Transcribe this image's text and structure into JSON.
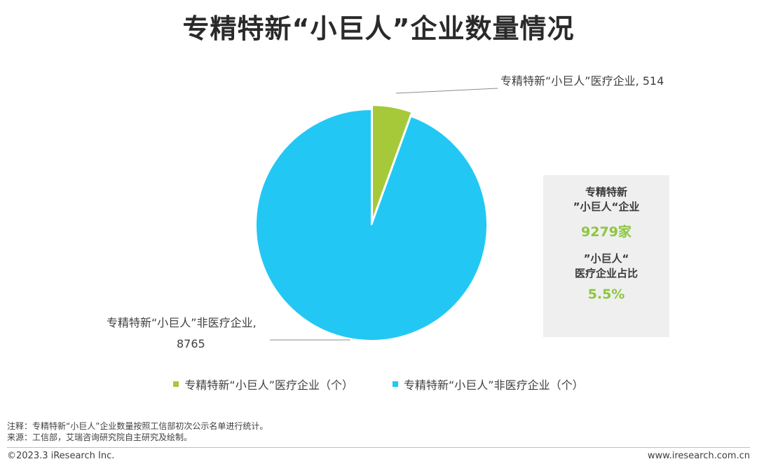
{
  "title": "专精特新“小巨人”企业数量情况",
  "chart_data": {
    "type": "pie",
    "categories": [
      "专精特新“小巨人”医疗企业",
      "专精特新“小巨人”非医疗企业"
    ],
    "values": [
      514,
      8765
    ],
    "colors": [
      "#a6c93a",
      "#22c8f3"
    ],
    "unit": "个"
  },
  "callouts": {
    "medical": "专精特新“小巨人”医疗企业, 514",
    "non_medical_line1": "专精特新“小巨人”非医疗企业,",
    "non_medical_line2": "8765"
  },
  "info_box": {
    "total_label_line1": "专精特新",
    "total_label_line2": "”小巨人“企业",
    "total_value": "9279家",
    "share_label_line1": "”小巨人“",
    "share_label_line2": "医疗企业占比",
    "share_value": "5.5%"
  },
  "legend": [
    {
      "label": "专精特新“小巨人”医疗企业（个）",
      "color": "#a6c93a"
    },
    {
      "label": "专精特新“小巨人”非医疗企业（个）",
      "color": "#22c8f3"
    }
  ],
  "notes": {
    "note": "注释：专精特新“小巨人”企业数量按照工信部初次公示名单进行统计。",
    "source": "来源：工信部，艾瑞咨询研究院自主研究及绘制。"
  },
  "footer": {
    "copyright": "©2023.3 iResearch Inc.",
    "website": "www.iresearch.com.cn"
  }
}
